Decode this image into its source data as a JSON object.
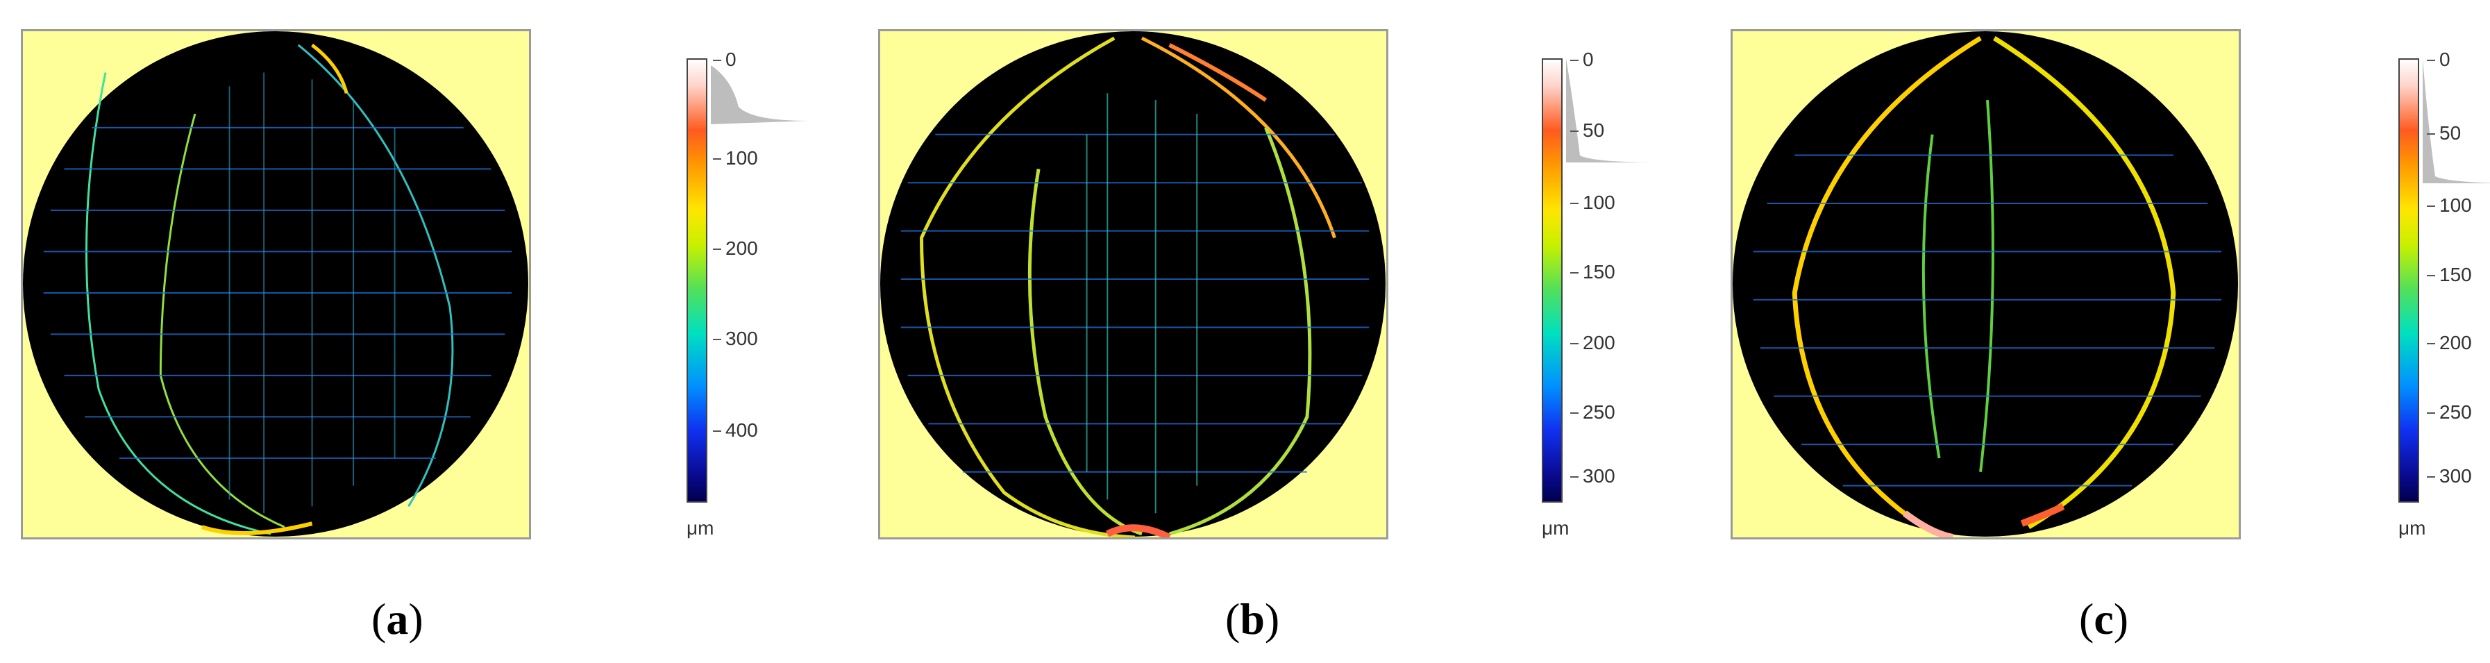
{
  "colors": {
    "background": "#ffff99",
    "crack_dark": "#000000"
  },
  "panels": [
    {
      "caption_open": "(",
      "caption_letter": "a",
      "caption_close": ")",
      "scale_ticks": [
        "0",
        "100",
        "200",
        "300",
        "400"
      ],
      "unit": "μm"
    },
    {
      "caption_open": "(",
      "caption_letter": "b",
      "caption_close": ")",
      "scale_ticks": [
        "0",
        "50",
        "100",
        "150",
        "200",
        "250",
        "300"
      ],
      "unit": "μm"
    },
    {
      "caption_open": "(",
      "caption_letter": "c",
      "caption_close": ")",
      "scale_ticks": [
        "0",
        "50",
        "100",
        "150",
        "200",
        "250",
        "300"
      ],
      "unit": "μm"
    }
  ]
}
